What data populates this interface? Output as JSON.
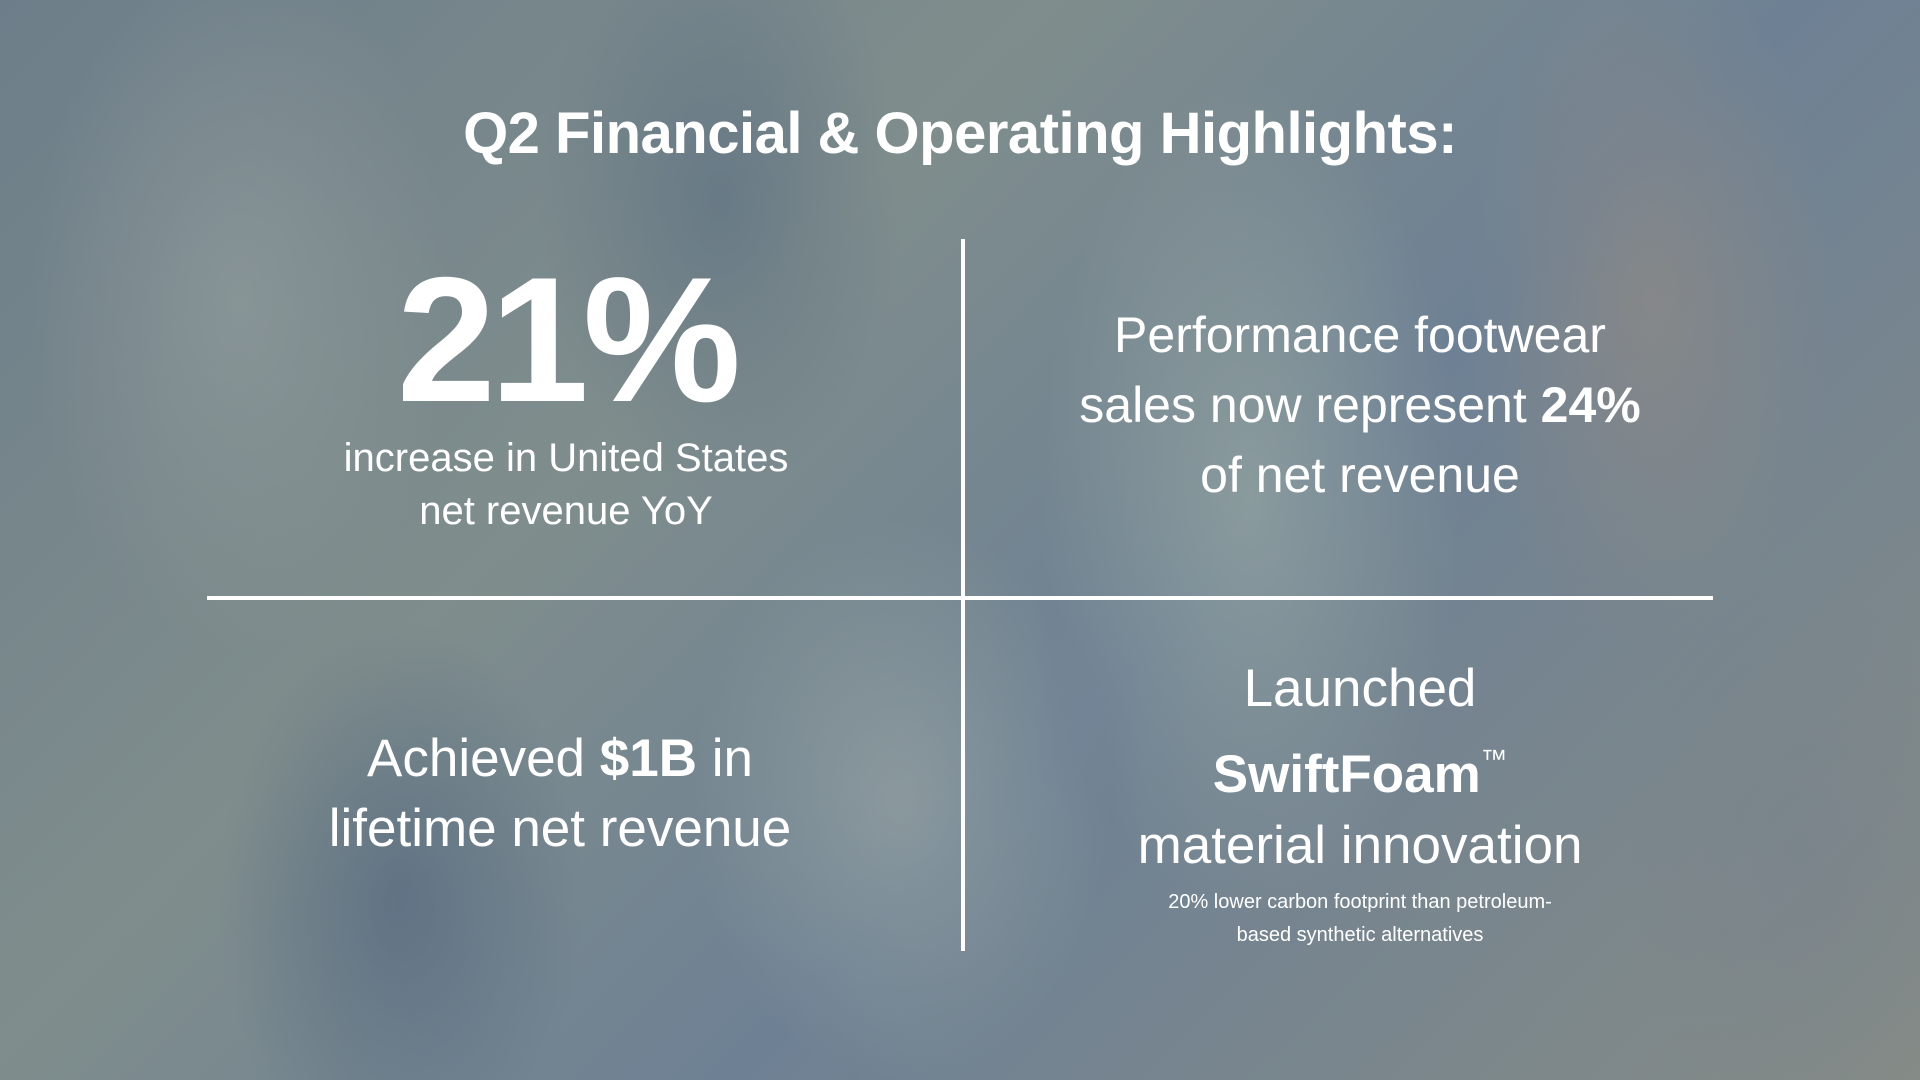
{
  "title": "Q2 Financial & Operating Highlights:",
  "q1": {
    "stat": "21%",
    "line1": "increase in United States",
    "line2": "net revenue YoY"
  },
  "q2": {
    "line1": "Performance footwear",
    "line2_pre": "sales now represent",
    "line2_bold": "24%",
    "line3": "of net revenue"
  },
  "q3": {
    "pre": "Achieved",
    "bold": "$1B",
    "post": "in",
    "line2": "lifetime net revenue"
  },
  "q4": {
    "line1": "Launched",
    "bold": "SwiftFoam",
    "tm": "™",
    "line3": "material innovation",
    "note1": "20% lower carbon footprint than petroleum-",
    "note2": "based synthetic alternatives"
  }
}
